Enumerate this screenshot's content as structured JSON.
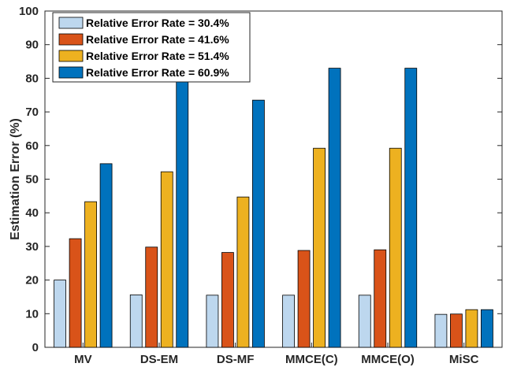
{
  "chart_data": {
    "type": "bar",
    "categories": [
      "MV",
      "DS-EM",
      "DS-MF",
      "MMCE(C)",
      "MMCE(O)",
      "MiSC"
    ],
    "series": [
      {
        "name": "Relative Error Rate = 30.4%",
        "color": "#bdd7ee",
        "values": [
          20.0,
          15.6,
          15.5,
          15.5,
          15.5,
          9.8
        ]
      },
      {
        "name": "Relative Error Rate = 41.6%",
        "color": "#d95319",
        "values": [
          32.3,
          29.8,
          28.2,
          28.8,
          29.0,
          9.9
        ]
      },
      {
        "name": "Relative Error Rate = 51.4%",
        "color": "#edb120",
        "values": [
          43.3,
          52.2,
          44.7,
          59.2,
          59.2,
          11.2
        ]
      },
      {
        "name": "Relative Error Rate = 60.9%",
        "color": "#0072bd",
        "values": [
          54.6,
          79.0,
          73.5,
          83.0,
          83.0,
          11.2
        ]
      }
    ],
    "xlabel": "",
    "ylabel": "Estimation Error (%)",
    "ylim": [
      0,
      100
    ],
    "yticks": [
      "0",
      "10",
      "20",
      "30",
      "40",
      "50",
      "60",
      "70",
      "80",
      "90",
      "100"
    ],
    "grid": false,
    "legend_position": "top-left"
  }
}
